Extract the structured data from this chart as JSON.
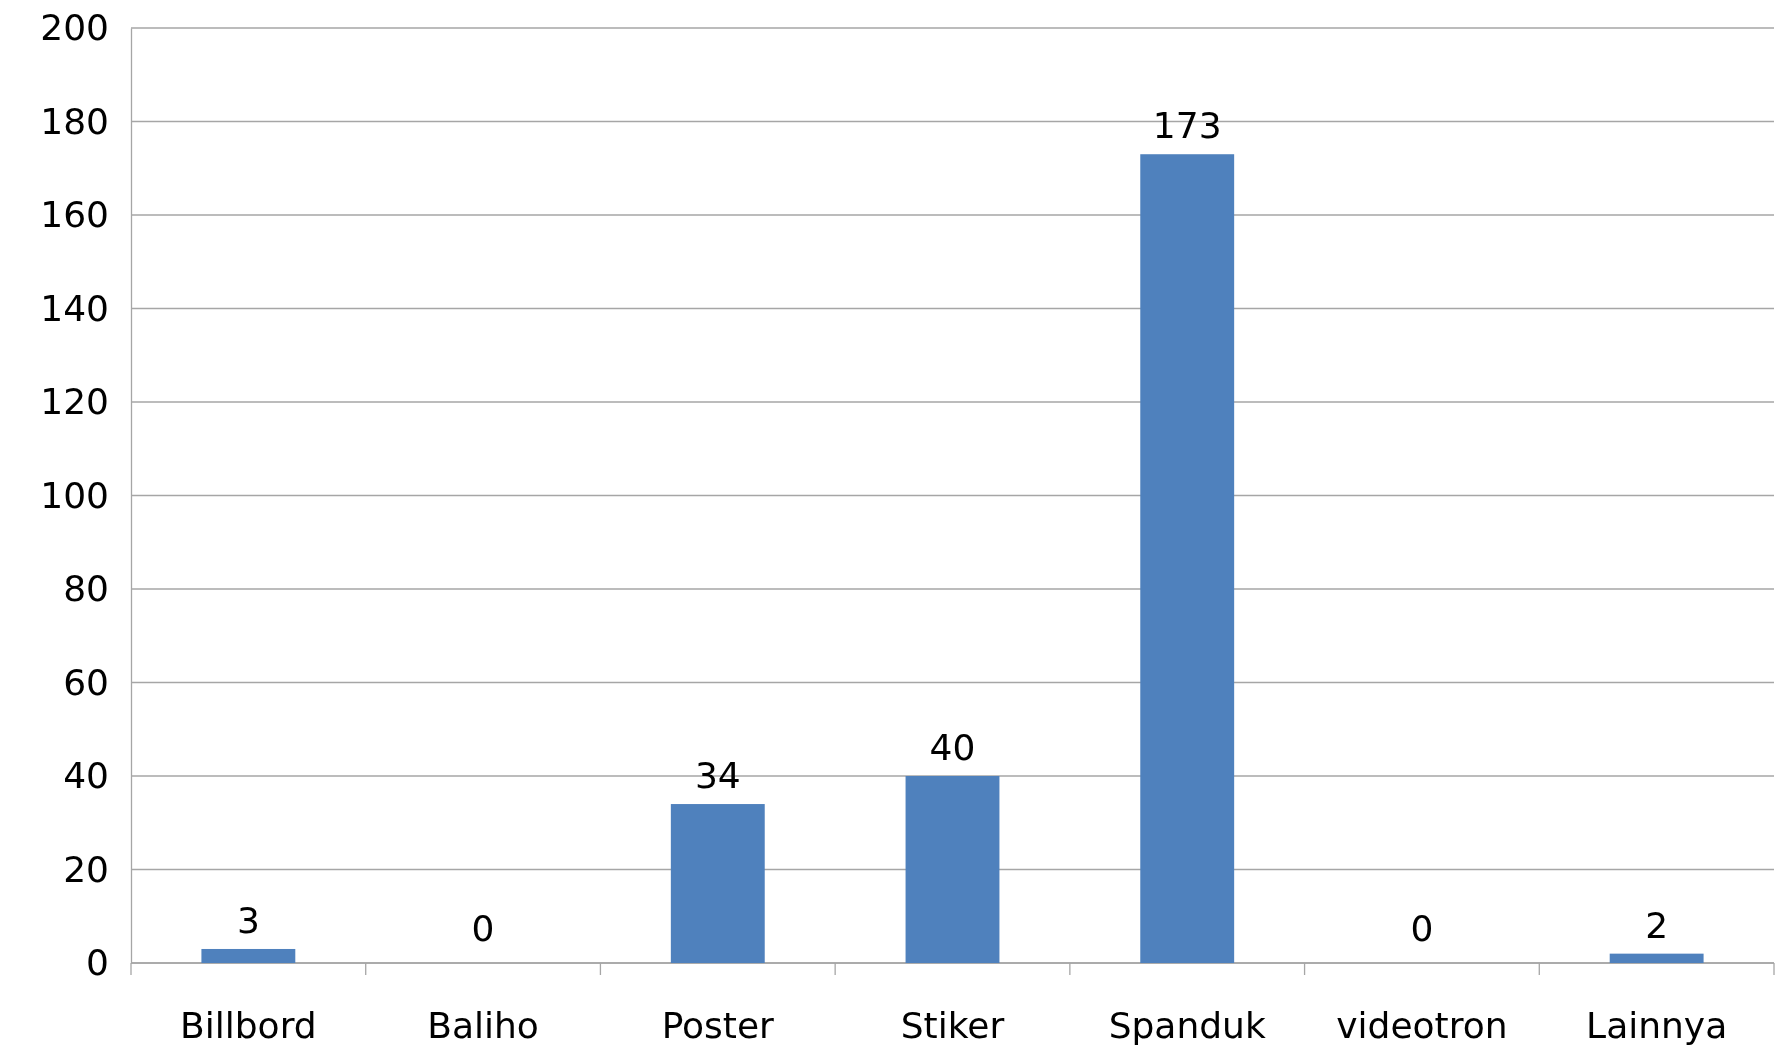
{
  "chart_data": {
    "type": "bar",
    "categories": [
      "Billbord",
      "Baliho",
      "Poster",
      "Stiker",
      "Spanduk",
      "videotron",
      "Lainnya"
    ],
    "values": [
      3,
      0,
      34,
      40,
      173,
      0,
      2
    ],
    "color": "#4f81bd",
    "ylim": [
      0,
      200
    ],
    "yticks": [
      0,
      20,
      40,
      60,
      80,
      100,
      120,
      140,
      160,
      180,
      200
    ],
    "grid": "y",
    "data_labels": true
  }
}
